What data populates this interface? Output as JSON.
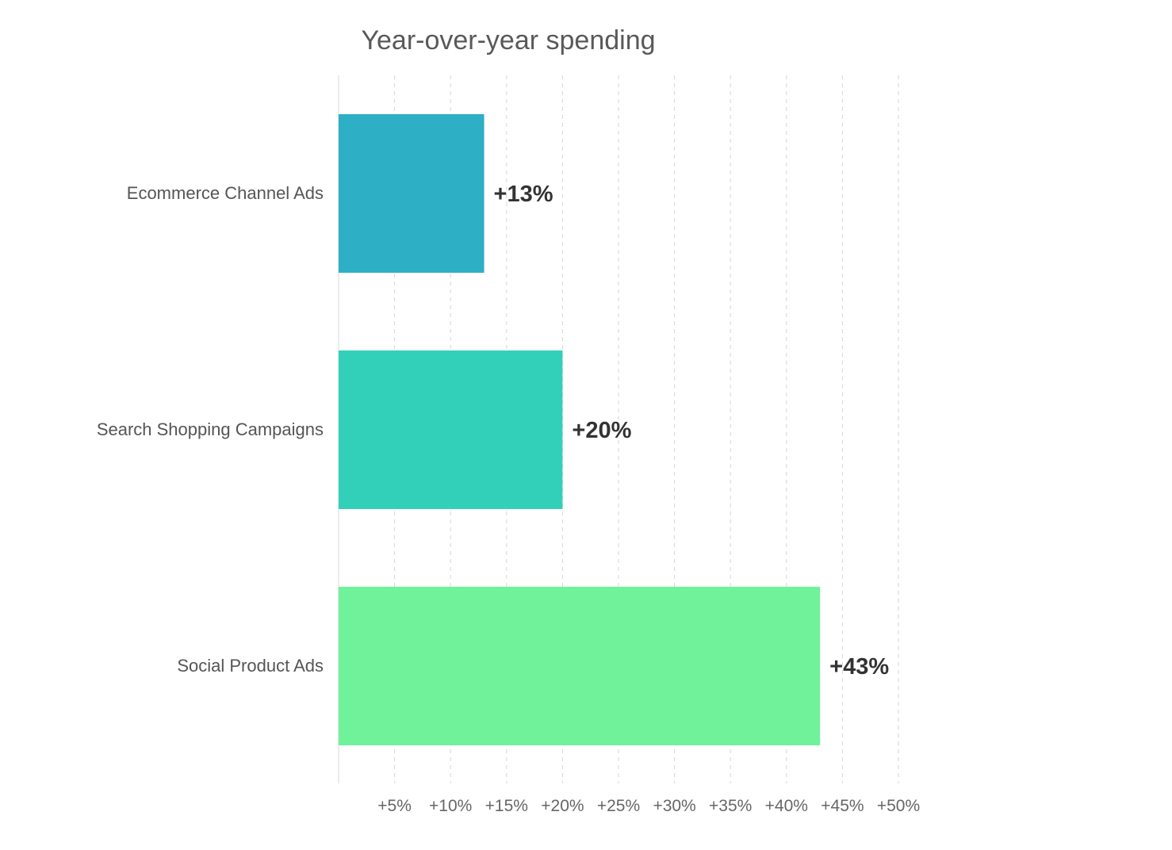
{
  "chart_data": {
    "type": "bar",
    "orientation": "horizontal",
    "title": "Year-over-year spending",
    "categories": [
      "Ecommerce Channel Ads",
      "Search Shopping Campaigns",
      "Social Product Ads"
    ],
    "values": [
      13,
      20,
      43
    ],
    "data_labels": [
      "+13%",
      "+20%",
      "+43%"
    ],
    "colors": [
      "#2DAFC6",
      "#33D0B9",
      "#6FF29A"
    ],
    "xlabel": "",
    "ylabel": "",
    "xlim": [
      0,
      50
    ],
    "x_ticks": [
      5,
      10,
      15,
      20,
      25,
      30,
      35,
      40,
      45,
      50
    ],
    "x_tick_labels": [
      "+5%",
      "+10%",
      "+15%",
      "+20%",
      "+25%",
      "+30%",
      "+35%",
      "+40%",
      "+45%",
      "+50%"
    ],
    "grid": true,
    "legend": "none"
  }
}
